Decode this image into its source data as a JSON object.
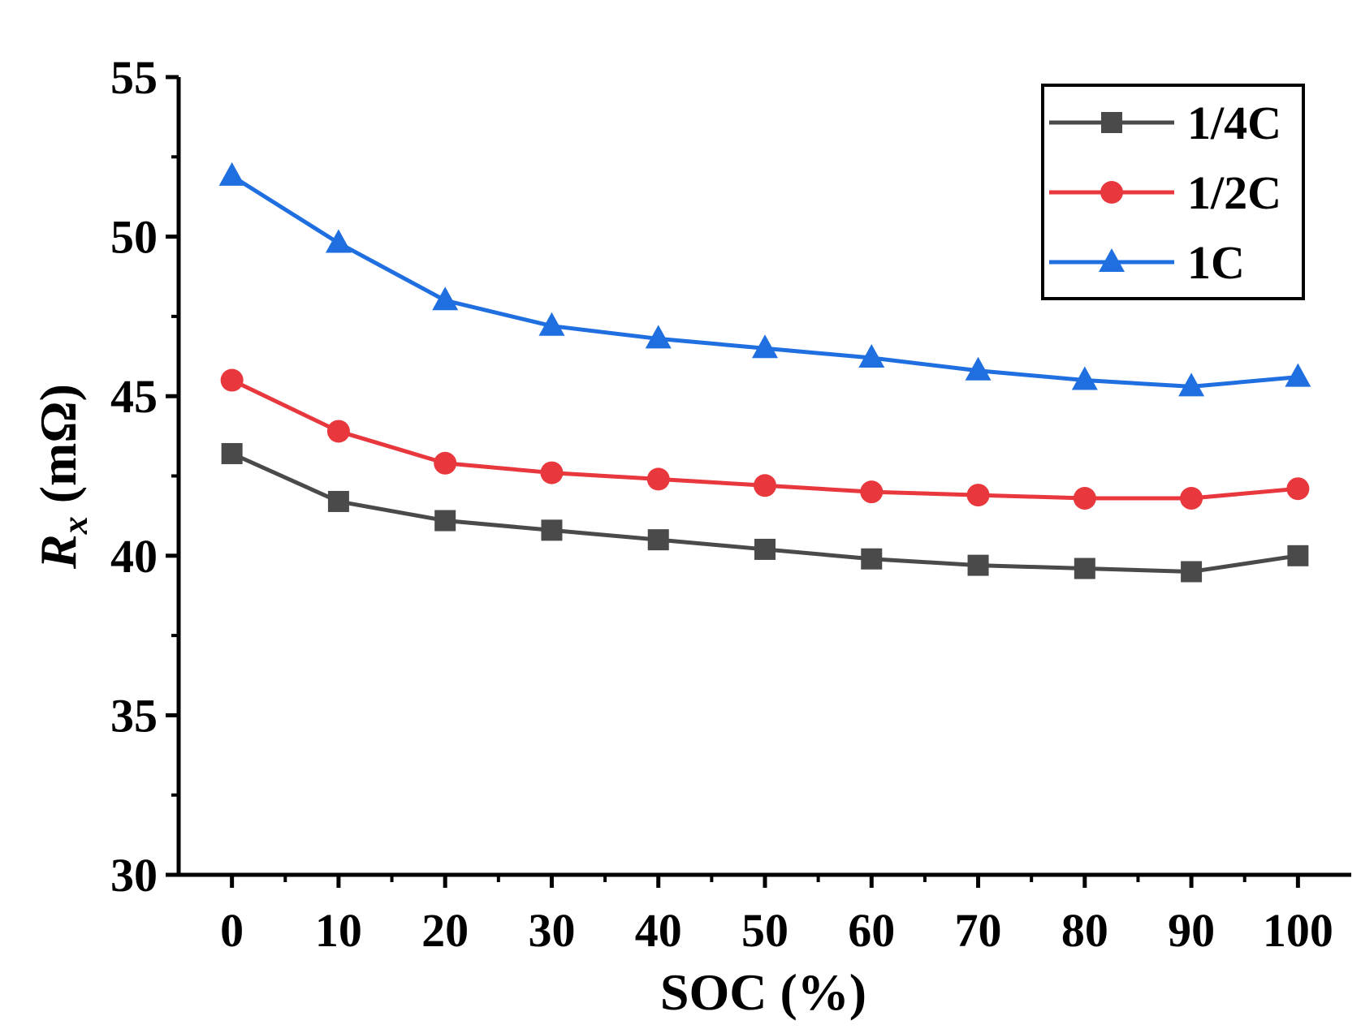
{
  "chart_data": {
    "type": "line",
    "title": "",
    "xlabel": "SOC (%)",
    "ylabel": {
      "symbol": "R",
      "subscript": "x",
      "unit": " (mΩ)"
    },
    "xlim": [
      -5,
      105
    ],
    "ylim": [
      30,
      55
    ],
    "xticks": [
      0,
      10,
      20,
      30,
      40,
      50,
      60,
      70,
      80,
      90,
      100
    ],
    "yticks": [
      30,
      35,
      40,
      45,
      50,
      55
    ],
    "x": [
      0,
      10,
      20,
      30,
      40,
      50,
      60,
      70,
      80,
      90,
      100
    ],
    "series": [
      {
        "name": "1/4C",
        "marker": "square",
        "color": "#4a4a4a",
        "values": [
          43.2,
          41.7,
          41.1,
          40.8,
          40.5,
          40.2,
          39.9,
          39.7,
          39.6,
          39.5,
          40.0
        ]
      },
      {
        "name": "1/2C",
        "marker": "circle",
        "color": "#e8383d",
        "values": [
          45.5,
          43.9,
          42.9,
          42.6,
          42.4,
          42.2,
          42.0,
          41.9,
          41.8,
          41.8,
          42.1
        ]
      },
      {
        "name": "1C",
        "marker": "triangle",
        "color": "#1f6fe0",
        "values": [
          51.9,
          49.8,
          48.0,
          47.2,
          46.8,
          46.5,
          46.2,
          45.8,
          45.5,
          45.3,
          45.6
        ]
      }
    ],
    "legend_position": "top-right",
    "grid": false
  }
}
